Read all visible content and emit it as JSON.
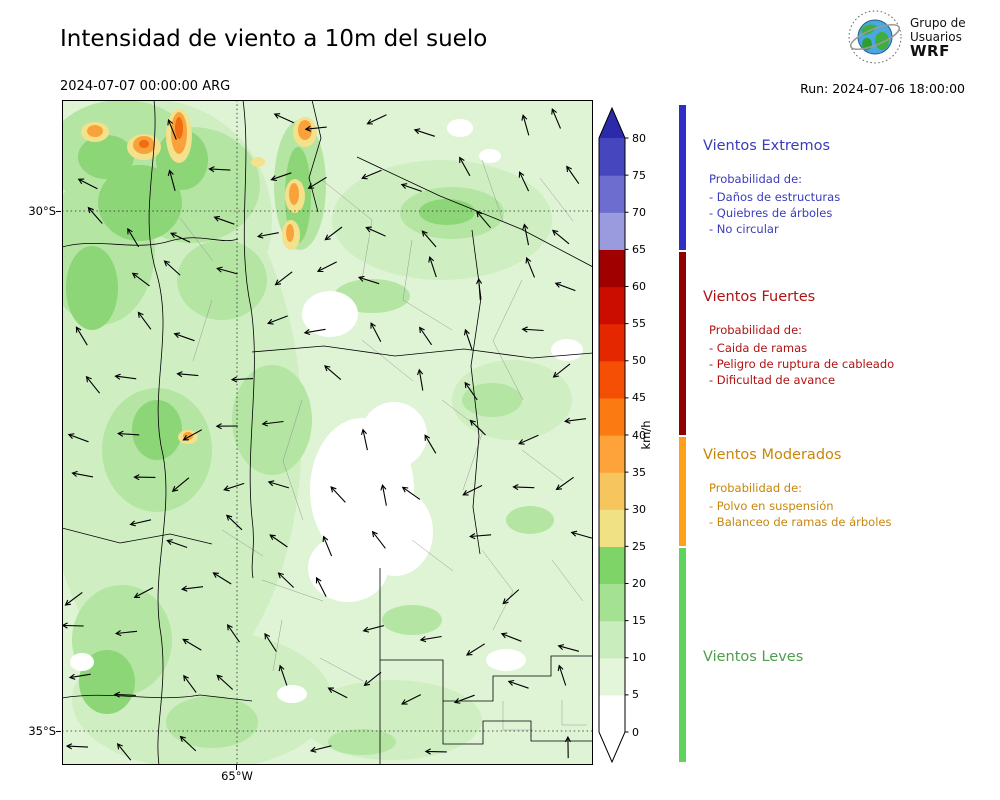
{
  "header": {
    "title": "Intensidad de viento a 10m del suelo",
    "datetime": "2024-07-07 00:00:00 ARG",
    "run_label": "Run: 2024-07-06 18:00:00",
    "logo": {
      "line1": "Grupo de",
      "line2": "Usuarios",
      "line3": "WRF"
    }
  },
  "map": {
    "lat_labels": [
      "30°S",
      "35°S"
    ],
    "lon_label": "65°W"
  },
  "colorbar": {
    "unit": "km/h",
    "ticks": [
      0,
      5,
      10,
      15,
      20,
      25,
      30,
      35,
      40,
      45,
      50,
      55,
      60,
      65,
      70,
      75,
      80
    ],
    "segment_colors": [
      "#ffffff",
      "#e3f6da",
      "#c9edbc",
      "#a5e192",
      "#7fd468",
      "#f0e284",
      "#f6c55e",
      "#fda33a",
      "#fb7b12",
      "#f44f05",
      "#e52700",
      "#cb0d00",
      "#a00000",
      "#9a9ade",
      "#6d6dcf",
      "#4646bf"
    ],
    "over_color": "#2a2aab",
    "under_color": "#ffffff"
  },
  "categories": [
    {
      "name": "Vientos Extremos",
      "color": "#3b3bbb",
      "bar_color": "#2e2ec4",
      "prob_title": "Probabilidad de:",
      "items": [
        "- Daños de estructuras",
        "- Quiebres de árboles",
        "- No circular"
      ]
    },
    {
      "name": "Vientos Fuertes",
      "color": "#b01212",
      "bar_color": "#8f0000",
      "prob_title": "Probabilidad de:",
      "items": [
        "- Caida de ramas",
        "- Peligro de ruptura de cableado",
        "- Dificultad de avance"
      ]
    },
    {
      "name": "Vientos Moderados",
      "color": "#c8860a",
      "bar_color": "#ff9f1a",
      "prob_title": "Probabilidad de:",
      "items": [
        "- Polvo en suspensión",
        "- Balanceo de ramas de árboles"
      ]
    },
    {
      "name": "Vientos Leves",
      "color": "#4d9e4d",
      "bar_color": "#5ed45e",
      "prob_title": "",
      "items": []
    }
  ]
}
